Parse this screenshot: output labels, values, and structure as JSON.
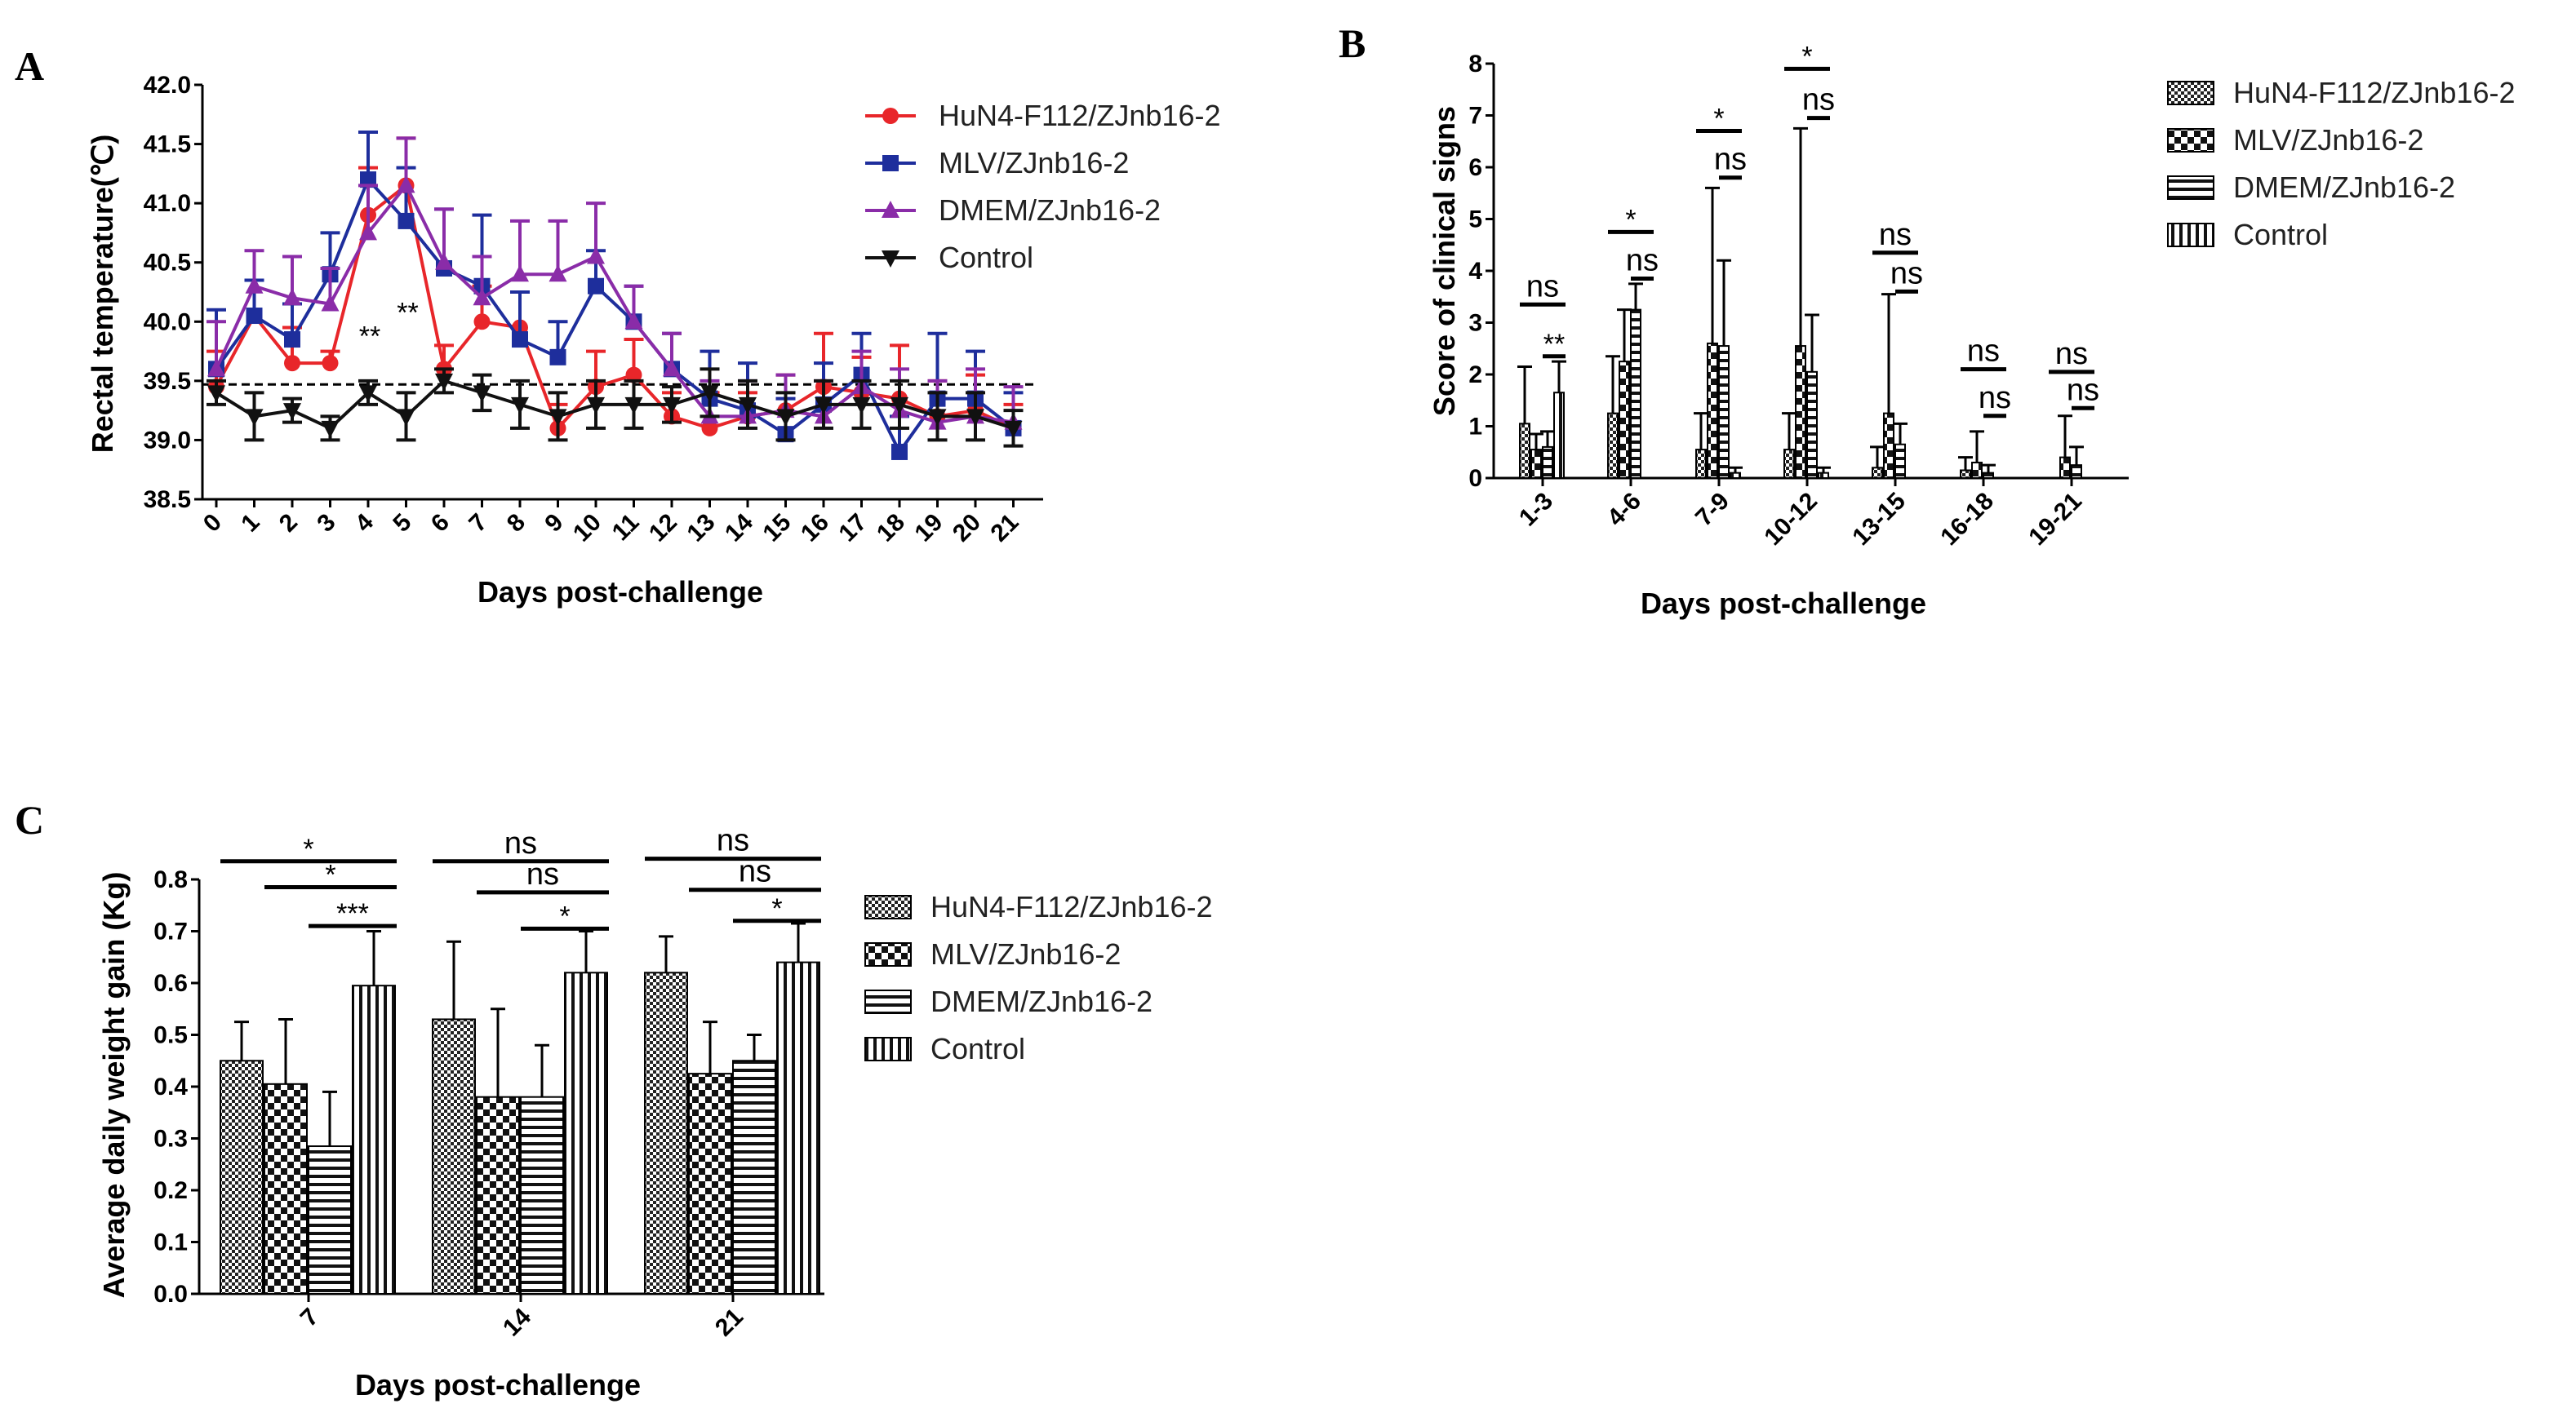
{
  "chart_data": [
    {
      "panel": "A",
      "type": "line",
      "xlabel": "Days post-challenge",
      "ylabel": "Rectal temperature(℃)",
      "ylim": [
        38.5,
        42.0
      ],
      "yticks": [
        "38.5",
        "39.0",
        "39.5",
        "40.0",
        "40.5",
        "41.0",
        "41.5",
        "42.0"
      ],
      "x": [
        0,
        1,
        2,
        3,
        4,
        5,
        6,
        7,
        8,
        9,
        10,
        11,
        12,
        13,
        14,
        15,
        16,
        17,
        18,
        19,
        20,
        21
      ],
      "threshold": 39.47,
      "series": [
        {
          "name": "HuN4-F112/ZJnb16-2",
          "color": "#e8262a",
          "marker": "circle",
          "values": [
            39.45,
            40.05,
            39.65,
            39.65,
            40.9,
            41.15,
            39.6,
            40.0,
            39.95,
            39.1,
            39.45,
            39.55,
            39.2,
            39.1,
            39.2,
            39.25,
            39.45,
            39.4,
            39.35,
            39.2,
            39.25,
            39.1
          ],
          "err": [
            0.3,
            0.3,
            0.3,
            0.1,
            0.4,
            0.4,
            0.2,
            0.3,
            0.3,
            0.2,
            0.3,
            0.3,
            0.2,
            0.3,
            0.2,
            0.3,
            0.45,
            0.3,
            0.45,
            0.3,
            0.3,
            0.2
          ]
        },
        {
          "name": "MLV/ZJnb16-2",
          "color": "#1e2e9c",
          "marker": "square",
          "values": [
            39.6,
            40.05,
            39.85,
            40.4,
            41.2,
            40.85,
            40.45,
            40.3,
            39.85,
            39.7,
            40.3,
            40.0,
            39.6,
            39.35,
            39.25,
            39.05,
            39.3,
            39.55,
            38.9,
            39.35,
            39.35,
            39.1
          ],
          "err": [
            0.5,
            0.3,
            0.3,
            0.35,
            0.4,
            0.45,
            0.5,
            0.6,
            0.4,
            0.3,
            0.3,
            0.3,
            0.3,
            0.4,
            0.4,
            0.3,
            0.35,
            0.35,
            0.3,
            0.55,
            0.4,
            0.3
          ]
        },
        {
          "name": "DMEM/ZJnb16-2",
          "color": "#8a2ca8",
          "marker": "triangle",
          "values": [
            39.6,
            40.3,
            40.2,
            40.15,
            40.75,
            41.15,
            40.5,
            40.2,
            40.4,
            40.4,
            40.55,
            40.0,
            39.6,
            39.2,
            39.2,
            39.25,
            39.2,
            39.45,
            39.25,
            39.15,
            39.2,
            39.15
          ],
          "err": [
            0.4,
            0.3,
            0.35,
            0.3,
            0.4,
            0.4,
            0.45,
            0.35,
            0.45,
            0.45,
            0.45,
            0.3,
            0.3,
            0.3,
            0.3,
            0.3,
            0.3,
            0.3,
            0.35,
            0.35,
            0.4,
            0.3
          ]
        },
        {
          "name": "Control",
          "color": "#111111",
          "marker": "triangle-down",
          "values": [
            39.4,
            39.2,
            39.25,
            39.1,
            39.4,
            39.2,
            39.5,
            39.4,
            39.3,
            39.2,
            39.3,
            39.3,
            39.3,
            39.4,
            39.3,
            39.2,
            39.3,
            39.3,
            39.3,
            39.2,
            39.2,
            39.1
          ],
          "err": [
            0.1,
            0.2,
            0.1,
            0.1,
            0.1,
            0.2,
            0.1,
            0.15,
            0.2,
            0.2,
            0.2,
            0.2,
            0.15,
            0.2,
            0.2,
            0.2,
            0.2,
            0.2,
            0.2,
            0.2,
            0.2,
            0.15
          ]
        }
      ],
      "annotations": [
        {
          "text": "**",
          "x": 4,
          "y": 39.8
        },
        {
          "text": "**",
          "x": 5,
          "y": 40.0
        }
      ]
    },
    {
      "panel": "B",
      "type": "bar",
      "xlabel": "Days post-challenge",
      "ylabel": "Score of clinical signs",
      "ylim": [
        0,
        8
      ],
      "yticks": [
        "0",
        "1",
        "2",
        "3",
        "4",
        "5",
        "6",
        "7",
        "8"
      ],
      "categories": [
        "1-3",
        "4-6",
        "7-9",
        "10-12",
        "13-15",
        "16-18",
        "19-21"
      ],
      "series": [
        {
          "name": "HuN4-F112/ZJnb16-2",
          "pattern": "checker",
          "values": [
            1.05,
            1.25,
            0.55,
            0.55,
            0.2,
            0.15,
            0.0
          ],
          "err": [
            1.1,
            1.1,
            0.7,
            0.7,
            0.4,
            0.25,
            0.0
          ]
        },
        {
          "name": "MLV/ZJnb16-2",
          "pattern": "bigchecker",
          "values": [
            0.55,
            2.25,
            2.6,
            2.55,
            1.25,
            0.3,
            0.4
          ],
          "err": [
            0.3,
            1.0,
            3.0,
            4.2,
            2.3,
            0.6,
            0.8
          ]
        },
        {
          "name": "DMEM/ZJnb16-2",
          "pattern": "hlines",
          "values": [
            0.6,
            3.25,
            2.55,
            2.05,
            0.65,
            0.1,
            0.25
          ],
          "err": [
            0.3,
            0.5,
            1.65,
            1.1,
            0.4,
            0.15,
            0.35
          ]
        },
        {
          "name": "Control",
          "pattern": "vlines",
          "values": [
            1.65,
            0.0,
            0.1,
            0.1,
            0.0,
            0.0,
            0.0
          ],
          "err": [
            0.6,
            0.0,
            0.1,
            0.1,
            0.0,
            0.0,
            0.0
          ]
        }
      ],
      "significance": [
        {
          "label": "ns",
          "cat": 0,
          "y": 3.35
        },
        {
          "label": "**",
          "cat": 0,
          "y": 2.35
        },
        {
          "label": "*",
          "cat": 1,
          "y": 4.75
        },
        {
          "label": "ns",
          "cat": 1,
          "y": 3.85
        },
        {
          "label": "*",
          "cat": 2,
          "y": 6.7
        },
        {
          "label": "ns",
          "cat": 2,
          "y": 5.8
        },
        {
          "label": "*",
          "cat": 3,
          "y": 7.9
        },
        {
          "label": "ns",
          "cat": 3,
          "y": 6.95
        },
        {
          "label": "ns",
          "cat": 4,
          "y": 4.35
        },
        {
          "label": "ns",
          "cat": 4,
          "y": 3.6
        },
        {
          "label": "ns",
          "cat": 5,
          "y": 2.1
        },
        {
          "label": "ns",
          "cat": 5,
          "y": 1.2
        },
        {
          "label": "ns",
          "cat": 6,
          "y": 2.05
        },
        {
          "label": "ns",
          "cat": 6,
          "y": 1.35
        }
      ]
    },
    {
      "panel": "C",
      "type": "bar",
      "xlabel": "Days post-challenge",
      "ylabel": "Average daily weight gain (Kg)",
      "ylim": [
        0.0,
        0.8
      ],
      "yticks": [
        "0.0",
        "0.1",
        "0.2",
        "0.3",
        "0.4",
        "0.5",
        "0.6",
        "0.7",
        "0.8"
      ],
      "categories": [
        "7",
        "14",
        "21"
      ],
      "series": [
        {
          "name": "HuN4-F112/ZJnb16-2",
          "pattern": "checker",
          "values": [
            0.45,
            0.53,
            0.62
          ],
          "err": [
            0.075,
            0.15,
            0.07
          ]
        },
        {
          "name": "MLV/ZJnb16-2",
          "pattern": "bigchecker",
          "values": [
            0.405,
            0.38,
            0.425
          ],
          "err": [
            0.125,
            0.17,
            0.1
          ]
        },
        {
          "name": "DMEM/ZJnb16-2",
          "pattern": "hlines",
          "values": [
            0.285,
            0.38,
            0.45
          ],
          "err": [
            0.105,
            0.1,
            0.05
          ]
        },
        {
          "name": "Control",
          "pattern": "vlines",
          "values": [
            0.595,
            0.62,
            0.64
          ],
          "err": [
            0.105,
            0.08,
            0.075
          ]
        }
      ],
      "significance": [
        {
          "label": "*",
          "cat": 0,
          "y": 0.835
        },
        {
          "label": "*",
          "cat": 0,
          "y": 0.785
        },
        {
          "label": "***",
          "cat": 0,
          "y": 0.71
        },
        {
          "label": "ns",
          "cat": 1,
          "y": 0.835
        },
        {
          "label": "ns",
          "cat": 1,
          "y": 0.775
        },
        {
          "label": "*",
          "cat": 1,
          "y": 0.705
        },
        {
          "label": "ns",
          "cat": 2,
          "y": 0.84
        },
        {
          "label": "ns",
          "cat": 2,
          "y": 0.78
        },
        {
          "label": "*",
          "cat": 2,
          "y": 0.72
        }
      ]
    }
  ]
}
